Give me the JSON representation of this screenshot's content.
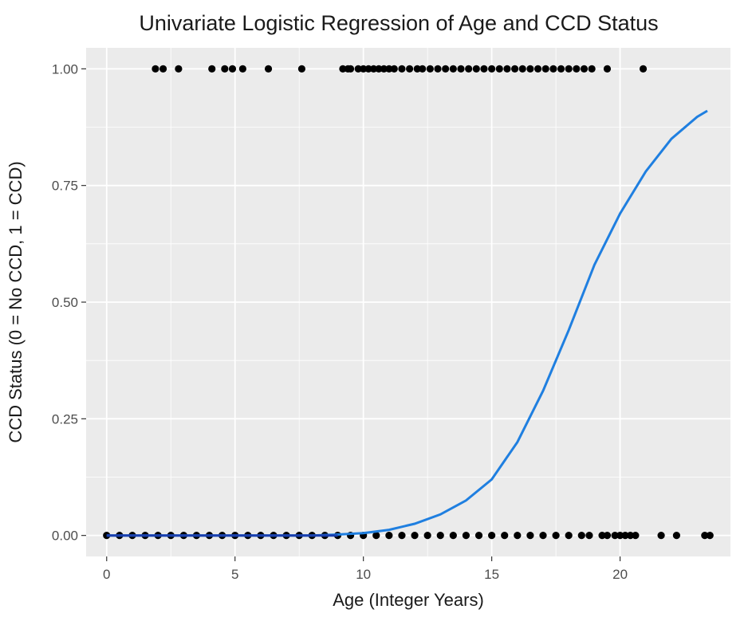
{
  "chart_data": {
    "type": "scatter",
    "title": "Univariate Logistic Regression of Age and CCD Status",
    "xlabel": "Age (Integer Years)",
    "ylabel": "CCD Status (0 = No CCD, 1 = CCD)",
    "xlim": [
      -0.8,
      24.3
    ],
    "ylim": [
      -0.045,
      1.045
    ],
    "x_ticks": [
      0,
      5,
      10,
      15,
      20
    ],
    "x_tick_labels": [
      "0",
      "5",
      "10",
      "15",
      "20"
    ],
    "y_ticks": [
      0,
      0.25,
      0.5,
      0.75,
      1
    ],
    "y_tick_labels": [
      "0.00",
      "0.25",
      "0.50",
      "0.75",
      "1.00"
    ],
    "grid": true,
    "legend": "none",
    "colors": {
      "panel": "#ebebeb",
      "grid": "#ffffff",
      "points": "#000000",
      "fit_line": "#1f7fe0"
    },
    "series": [
      {
        "kind": "points",
        "y": 1,
        "x": [
          1.9,
          2.2,
          2.8,
          4.1,
          4.6,
          4.9,
          5.3,
          6.3,
          7.6,
          9.2,
          9.4,
          9.5,
          9.8,
          10.0,
          10.2,
          10.4,
          10.6,
          10.8,
          11.0,
          11.2,
          11.5,
          11.8,
          12.1,
          12.3,
          12.6,
          12.9,
          13.2,
          13.5,
          13.8,
          14.1,
          14.4,
          14.7,
          15.0,
          15.3,
          15.6,
          15.9,
          16.2,
          16.5,
          16.8,
          17.1,
          17.4,
          17.7,
          18.0,
          18.3,
          18.6,
          18.9,
          19.5,
          20.9
        ]
      },
      {
        "kind": "points",
        "y": 0,
        "x": [
          0,
          0.5,
          1,
          1.5,
          2,
          2.5,
          3,
          3.5,
          4,
          4.5,
          5,
          5.5,
          6,
          6.5,
          7,
          7.5,
          8,
          8.5,
          9,
          9.5,
          10,
          10.5,
          11,
          11.5,
          12,
          12.5,
          13,
          13.5,
          14,
          14.5,
          15,
          15.5,
          16,
          16.5,
          17,
          17.5,
          18,
          18.5,
          18.8,
          19.3,
          19.5,
          19.8,
          20.0,
          20.2,
          20.4,
          20.6,
          21.6,
          22.2,
          23.3,
          23.5
        ]
      },
      {
        "kind": "fit_line",
        "x": [
          0,
          1,
          2,
          3,
          4,
          5,
          6,
          7,
          8,
          9,
          10,
          11,
          12,
          13,
          14,
          15,
          16,
          17,
          18,
          19,
          20,
          21,
          22,
          23,
          23.4
        ],
        "y": [
          0,
          0,
          0,
          0,
          0,
          0,
          0,
          0,
          0,
          0.002,
          0.005,
          0.012,
          0.025,
          0.045,
          0.075,
          0.12,
          0.2,
          0.31,
          0.44,
          0.58,
          0.69,
          0.78,
          0.85,
          0.897,
          0.91
        ]
      }
    ]
  }
}
